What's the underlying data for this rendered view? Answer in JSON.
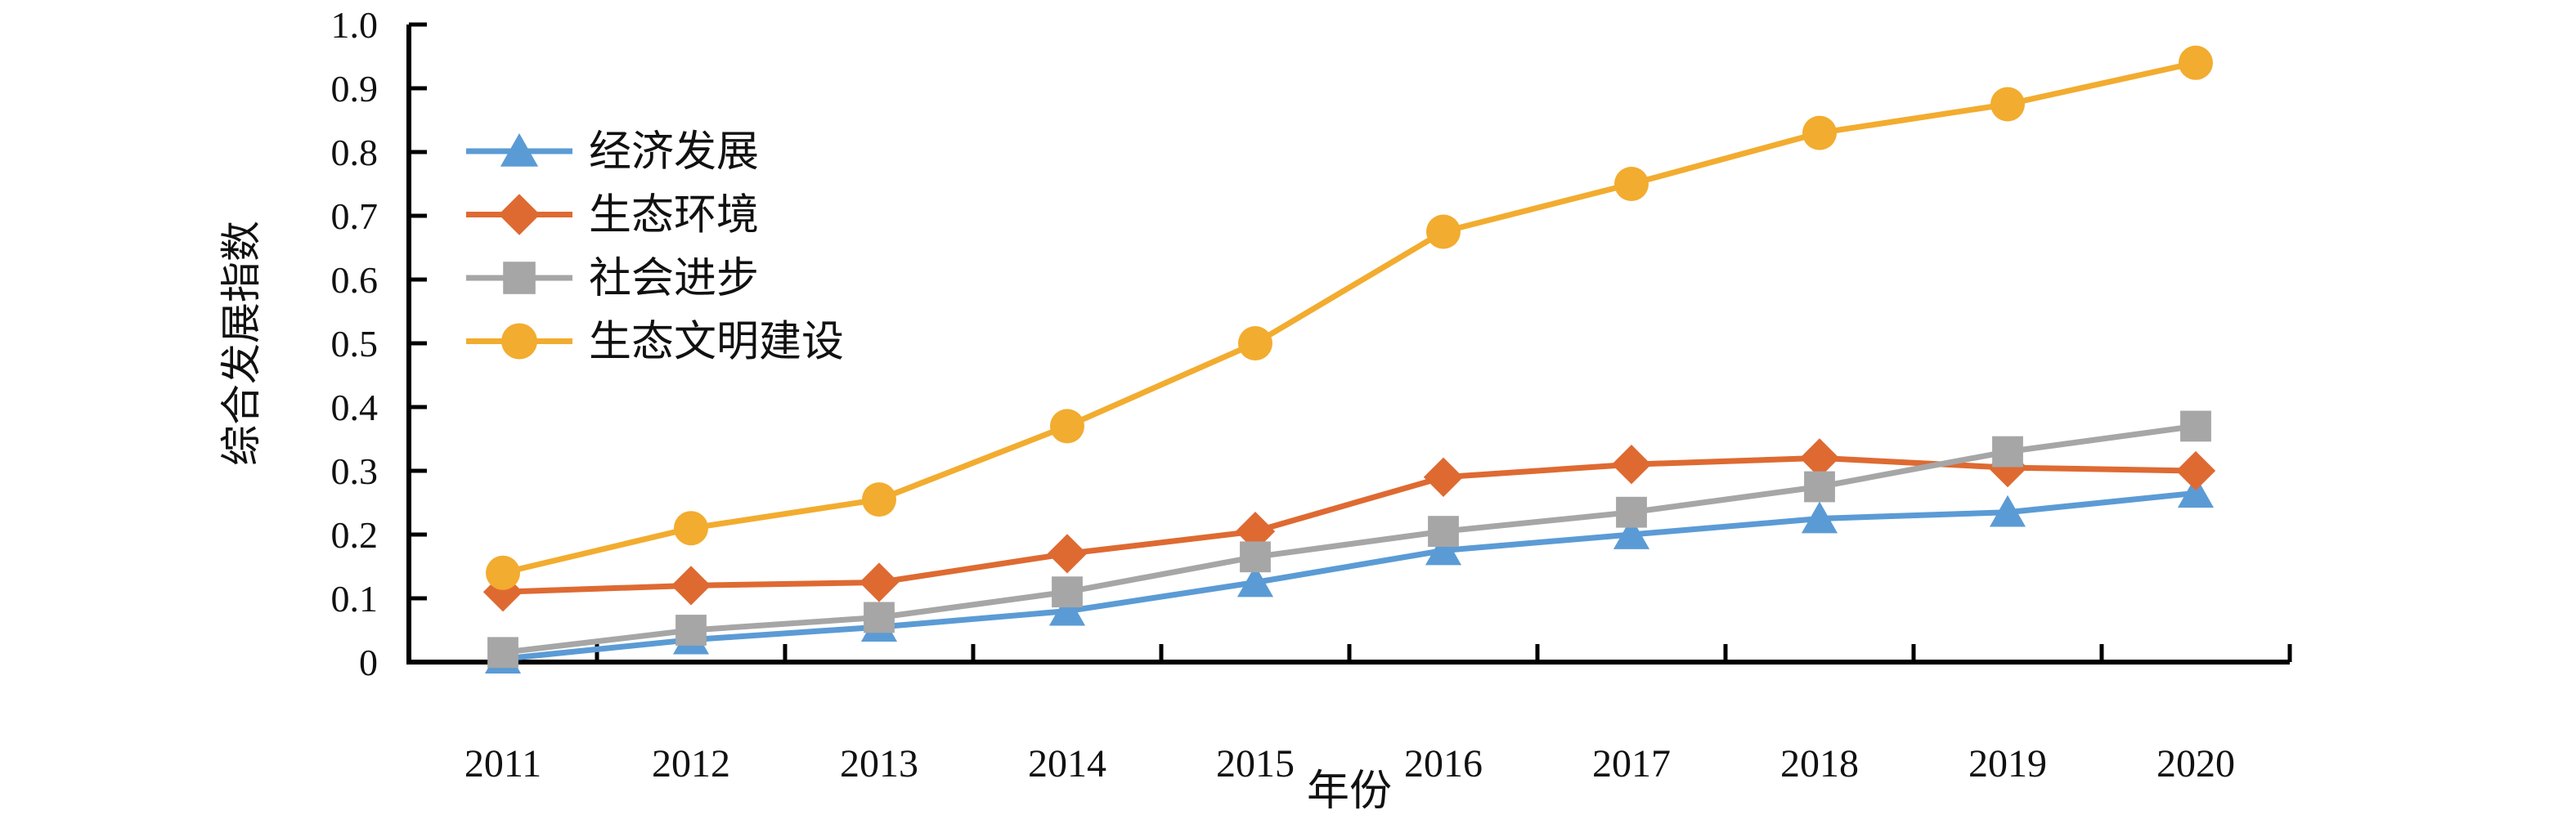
{
  "chart_data": {
    "type": "line",
    "title": "",
    "xlabel": "年份",
    "ylabel": "综合发展指数",
    "x": [
      "2011",
      "2012",
      "2013",
      "2014",
      "2015",
      "2016",
      "2017",
      "2018",
      "2019",
      "2020"
    ],
    "ylim": [
      0,
      1.0
    ],
    "y_tick_step": 0.1,
    "y_tick_labels": [
      "0",
      "0.1",
      "0.2",
      "0.3",
      "0.4",
      "0.5",
      "0.6",
      "0.7",
      "0.8",
      "0.9",
      "1.0"
    ],
    "grid": false,
    "legend_position": "inside-upper-left",
    "series": [
      {
        "name": "经济发展",
        "color": "#5B9BD5",
        "marker": "triangle",
        "values": [
          0.005,
          0.035,
          0.055,
          0.08,
          0.125,
          0.175,
          0.2,
          0.225,
          0.235,
          0.265
        ]
      },
      {
        "name": "生态环境",
        "color": "#DE6A32",
        "marker": "diamond",
        "values": [
          0.11,
          0.12,
          0.125,
          0.17,
          0.205,
          0.29,
          0.31,
          0.32,
          0.305,
          0.3
        ]
      },
      {
        "name": "社会进步",
        "color": "#A6A6A6",
        "marker": "square",
        "values": [
          0.015,
          0.05,
          0.07,
          0.11,
          0.165,
          0.205,
          0.235,
          0.275,
          0.33,
          0.37
        ]
      },
      {
        "name": "生态文明建设",
        "color": "#F2AC2F",
        "marker": "circle",
        "values": [
          0.14,
          0.21,
          0.255,
          0.37,
          0.5,
          0.675,
          0.75,
          0.83,
          0.875,
          0.94
        ]
      }
    ]
  },
  "colors": {
    "axis": "#000000",
    "text": "#111111",
    "background": "#FFFFFF"
  }
}
